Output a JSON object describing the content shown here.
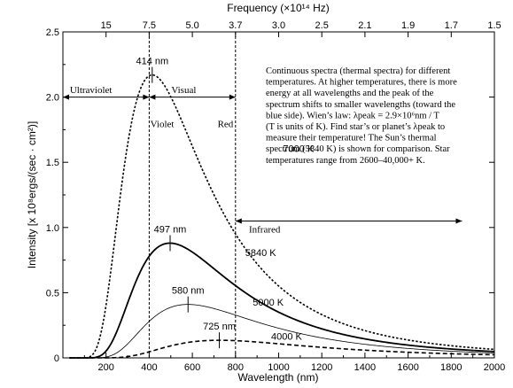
{
  "chart_data": {
    "type": "line",
    "title": "",
    "xlabel": "Wavelength (nm)",
    "ylabel": "Intensity [x 10⁸ergs/(sec · cm²)]",
    "top_axis_label": "Frequency (×10¹⁴ Hz)",
    "xlim": [
      0,
      2000
    ],
    "ylim": [
      0,
      2.5
    ],
    "x_ticks": [
      200,
      400,
      600,
      800,
      1000,
      1200,
      1400,
      1600,
      1800,
      2000
    ],
    "x_tick_labels": [
      "200",
      "400",
      "600",
      "800",
      "1000",
      "1200",
      "1400",
      "1600",
      "1800",
      "2000"
    ],
    "y_ticks": [
      0,
      0.5,
      1.0,
      1.5,
      2.0,
      2.5
    ],
    "y_tick_labels": [
      "0",
      "0.5",
      "1.0",
      "1.5",
      "2.0",
      "2.5"
    ],
    "top_ticks": [
      {
        "x": 200,
        "label": "15"
      },
      {
        "x": 400,
        "label": "7.5"
      },
      {
        "x": 600,
        "label": "5.0"
      },
      {
        "x": 800,
        "label": "3.7"
      },
      {
        "x": 1000,
        "label": "3.0"
      },
      {
        "x": 1200,
        "label": "2.5"
      },
      {
        "x": 1400,
        "label": "2.1"
      },
      {
        "x": 1600,
        "label": "1.9"
      },
      {
        "x": 1800,
        "label": "1.7"
      },
      {
        "x": 2000,
        "label": "1.5"
      }
    ],
    "series": [
      {
        "name": "7000 K",
        "temperature": 7000,
        "peak_amplitude": 2.17,
        "style": "dotted",
        "peak_label": "414 nm",
        "peak_x": 414
      },
      {
        "name": "5840 K",
        "temperature": 5840,
        "peak_amplitude": 0.88,
        "style": "solid",
        "peak_label": "497 nm",
        "peak_x": 497
      },
      {
        "name": "5000 K",
        "temperature": 5000,
        "peak_amplitude": 0.41,
        "style": "thin",
        "peak_label": "580 nm",
        "peak_x": 580
      },
      {
        "name": "4000 K",
        "temperature": 4000,
        "peak_amplitude": 0.135,
        "style": "dashed",
        "peak_label": "725 nm",
        "peak_x": 725
      }
    ],
    "series_labels": [
      {
        "text": "7000 K",
        "x": 1020,
        "y": 1.58
      },
      {
        "text": "5840 K",
        "x": 845,
        "y": 0.78
      },
      {
        "text": "5000 K",
        "x": 880,
        "y": 0.4
      },
      {
        "text": "4000 K",
        "x": 965,
        "y": 0.14
      }
    ],
    "reference_lines": [
      400,
      800
    ],
    "regions": [
      {
        "label": "Ultraviolet",
        "x_from": 0,
        "x_to": 400,
        "y": 2.0,
        "label_x": 130,
        "label_y": 2.03
      },
      {
        "label": "Visual",
        "x_from": 400,
        "x_to": 800,
        "y": 2.0,
        "label_x": 560,
        "label_y": 2.03
      },
      {
        "label": "Infrared",
        "x_from": 800,
        "x_to": 1850,
        "y": 1.05,
        "label_x": 935,
        "label_y": 0.96
      }
    ],
    "annotations": [
      {
        "text": "Violet",
        "x": 405,
        "y": 1.77
      },
      {
        "text": "Red",
        "x": 717,
        "y": 1.77
      }
    ],
    "description_lines": [
      "Continuous spectra (thermal spectra) for different",
      "temperatures. At higher temperatures, there is more",
      "energy at all wavelengths and the peak of the",
      "spectrum shifts to smaller wavelengths (toward the",
      "blue side). Wien’s law: λpeak = 2.9×10⁶nm / T",
      "(T is units of K). Find star’s or planet’s λpeak to",
      "measure their temperature! The Sun’s thermal",
      "spectrum (5840 K) is shown for comparison. Star",
      "temperatures range from 2600–40,000+ K."
    ],
    "grid": false,
    "legend": "none"
  }
}
